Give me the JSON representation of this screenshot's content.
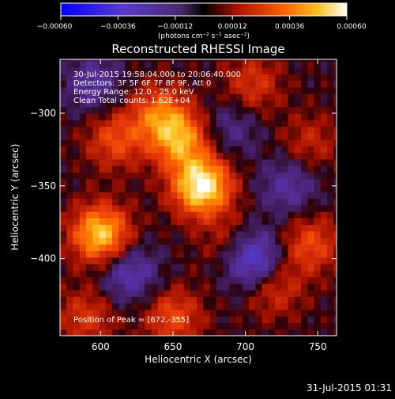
{
  "chart_data": {
    "type": "heatmap",
    "title": "Reconstructed RHESSI Image",
    "xlabel": "Heliocentric X (arcsec)",
    "ylabel": "Heliocentric Y (arcsec)",
    "xlim": [
      572,
      763
    ],
    "ylim": [
      -453,
      -263
    ],
    "xticks": [
      {
        "value": 600,
        "label": "600"
      },
      {
        "value": 650,
        "label": "650"
      },
      {
        "value": 700,
        "label": "700"
      },
      {
        "value": 750,
        "label": "750"
      }
    ],
    "yticks": [
      {
        "value": -300,
        "label": "−300"
      },
      {
        "value": -350,
        "label": "−350"
      },
      {
        "value": -400,
        "label": "−400"
      }
    ],
    "colorbar": {
      "min": -0.0006,
      "max": 0.0006,
      "ticks": [
        {
          "value": -0.0006,
          "label": "−0.00060"
        },
        {
          "value": -0.00036,
          "label": "−0.00036"
        },
        {
          "value": -0.00012,
          "label": "−0.00012"
        },
        {
          "value": 0.00012,
          "label": "0.00012"
        },
        {
          "value": 0.00036,
          "label": "0.00036"
        },
        {
          "value": 0.0006,
          "label": "0.00060"
        }
      ],
      "units": "(photons cm⁻² s⁻¹ asec⁻²)"
    },
    "peak": {
      "x": 672,
      "y": -355
    },
    "sources": [
      {
        "x": 670,
        "y": -350,
        "value": 0.0006
      },
      {
        "x": 655,
        "y": -318,
        "value": 0.0004
      },
      {
        "x": 600,
        "y": -383,
        "value": 0.0005
      },
      {
        "x": 640,
        "y": -300,
        "value": 0.0003
      },
      {
        "x": 610,
        "y": -318,
        "value": 0.00025
      },
      {
        "x": 705,
        "y": -280,
        "value": 0.0002
      },
      {
        "x": 650,
        "y": -440,
        "value": 0.00025
      },
      {
        "x": 720,
        "y": -420,
        "value": 0.0002
      },
      {
        "x": 745,
        "y": -390,
        "value": 0.00025
      },
      {
        "x": 745,
        "y": -320,
        "value": 0.00015
      },
      {
        "x": 590,
        "y": -440,
        "value": 0.0002
      },
      {
        "x": 690,
        "y": -390,
        "value": 0.00015
      },
      {
        "x": 705,
        "y": -400,
        "value": -0.0004
      },
      {
        "x": 595,
        "y": -280,
        "value": -0.0002
      },
      {
        "x": 730,
        "y": -350,
        "value": -0.0002
      },
      {
        "x": 620,
        "y": -410,
        "value": -0.00025
      },
      {
        "x": 690,
        "y": -310,
        "value": -0.00015
      }
    ]
  },
  "annotations": [
    "30-Jul-2015 19:58:04.000 to 20:06:40.000",
    "Detectors: 3F 5F 6F 7F 8F 9F, Att 0",
    "Energy Range: 12.0 - 25.0 keV",
    "Clean     Total counts: 1.62E+04"
  ],
  "peak_label": "Position of Peak = [672,-355]",
  "timestamp": "31-Jul-2015 01:31"
}
